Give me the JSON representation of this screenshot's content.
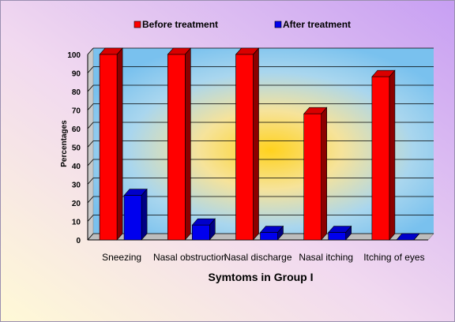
{
  "chart_data": {
    "type": "bar",
    "categories": [
      "Sneezing",
      "Nasal obstruction",
      "Nasal discharge",
      "Nasal itching",
      "Itching of eyes"
    ],
    "series": [
      {
        "name": "Before treatment",
        "values": [
          100,
          100,
          100,
          68,
          88
        ],
        "color": "#ff0000"
      },
      {
        "name": "After treatment",
        "values": [
          24,
          8,
          4,
          4,
          0
        ],
        "color": "#0000ee"
      }
    ],
    "xlabel": "Symtoms in Group I",
    "ylabel": "Percentages",
    "ylim": [
      0,
      100
    ],
    "yticks": [
      0,
      10,
      20,
      30,
      40,
      50,
      60,
      70,
      80,
      90,
      100
    ],
    "grid": true,
    "legend_position": "top",
    "background_colors": {
      "outer_left": "#fff8d8",
      "outer_right": "#c8a6f2",
      "plot_edge": "#7ec3ee",
      "plot_center": "#ffd23a"
    }
  }
}
